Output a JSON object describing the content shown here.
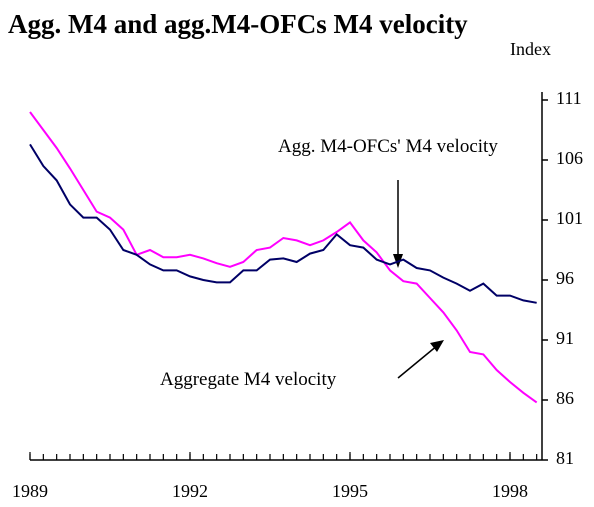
{
  "chart_data": {
    "type": "line",
    "title": "Agg. M4 and agg.M4-OFCs M4 velocity",
    "y_axis_label": "Index",
    "x": [
      1989,
      1989.25,
      1989.5,
      1989.75,
      1990,
      1990.25,
      1990.5,
      1990.75,
      1991,
      1991.25,
      1991.5,
      1991.75,
      1992,
      1992.25,
      1992.5,
      1992.75,
      1993,
      1993.25,
      1993.5,
      1993.75,
      1994,
      1994.25,
      1994.5,
      1994.75,
      1995,
      1995.25,
      1995.5,
      1995.75,
      1996,
      1996.25,
      1996.5,
      1996.75,
      1997,
      1997.25,
      1997.5,
      1997.75,
      1998,
      1998.25,
      1998.5
    ],
    "series": [
      {
        "name": "Aggregate M4 velocity",
        "color": "#ff00ff",
        "values": [
          110,
          108.5,
          107,
          105.3,
          103.5,
          101.7,
          101.2,
          100.2,
          98.1,
          98.5,
          97.9,
          97.9,
          98.1,
          97.8,
          97.4,
          97.1,
          97.5,
          98.5,
          98.7,
          99.5,
          99.3,
          98.9,
          99.3,
          100,
          100.8,
          99.3,
          98.3,
          96.8,
          95.9,
          95.7,
          94.5,
          93.3,
          91.8,
          90,
          89.8,
          88.5,
          87.5,
          86.6,
          85.8
        ]
      },
      {
        "name": "Agg. M4-OFCs' M4 velocity",
        "color": "#000066",
        "values": [
          107.3,
          105.5,
          104.3,
          102.3,
          101.2,
          101.2,
          100.2,
          98.5,
          98.1,
          97.3,
          96.8,
          96.8,
          96.3,
          96,
          95.8,
          95.8,
          96.8,
          96.8,
          97.7,
          97.8,
          97.5,
          98.2,
          98.5,
          99.8,
          98.9,
          98.7,
          97.7,
          97.3,
          97.7,
          97,
          96.8,
          96.2,
          95.7,
          95.1,
          95.7,
          94.7,
          94.7,
          94.3,
          94.1
        ]
      }
    ],
    "xlim": [
      1989,
      1998.6
    ],
    "xticks": [
      1989,
      1992,
      1995,
      1998
    ],
    "ylim": [
      81,
      111
    ],
    "yticks": [
      81,
      86,
      91,
      96,
      101,
      106,
      111
    ],
    "grid": false
  }
}
